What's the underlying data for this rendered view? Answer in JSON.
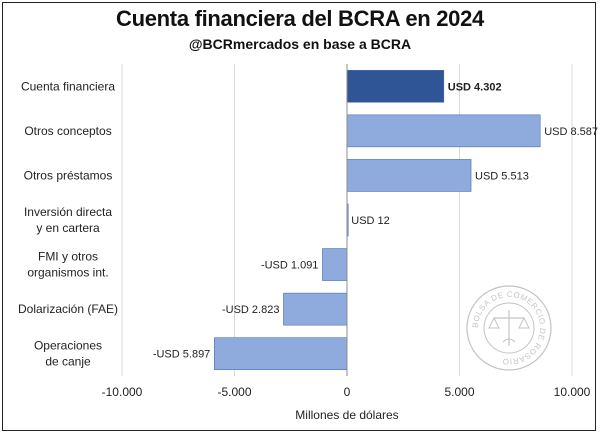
{
  "title": "Cuenta financiera del BCRA en 2024",
  "subtitle": "@BCRmercados en base a BCRA",
  "colors": {
    "highlight": "#2f5597",
    "bar": "#8faadc",
    "grid": "#d9d9d9",
    "text": "#222222"
  },
  "watermark": {
    "icon": "bolsa-de-comercio-seal-icon",
    "text": "BOLSA DE COMERCIO DE ROSARIO"
  },
  "chart_data": {
    "type": "bar",
    "orientation": "horizontal",
    "title": "Cuenta financiera del BCRA en 2024",
    "subtitle": "@BCRmercados en base a BCRA",
    "xlabel": "Millones de dólares",
    "ylabel": "",
    "xlim": [
      -10000,
      10000
    ],
    "xticks": [
      -10000,
      -5000,
      0,
      5000,
      10000
    ],
    "xtick_labels": [
      "-10.000",
      "-5.000",
      "0",
      "5.000",
      "10.000"
    ],
    "grid": true,
    "legend": "none",
    "categories": [
      [
        "Cuenta financiera"
      ],
      [
        "Otros conceptos"
      ],
      [
        "Otros préstamos"
      ],
      [
        "Inversión directa",
        "y en cartera"
      ],
      [
        "FMI y otros",
        "organismos int."
      ],
      [
        "Dolarización (FAE)"
      ],
      [
        "Operaciones",
        "de canje"
      ]
    ],
    "values": [
      4302,
      8587,
      5513,
      12,
      -1091,
      -2823,
      -5897
    ],
    "data_labels": [
      "USD 4.302",
      "USD 8.587",
      "USD 5.513",
      "USD 12",
      "-USD 1.091",
      "-USD 2.823",
      "-USD 5.897"
    ],
    "highlight_index": 0
  }
}
